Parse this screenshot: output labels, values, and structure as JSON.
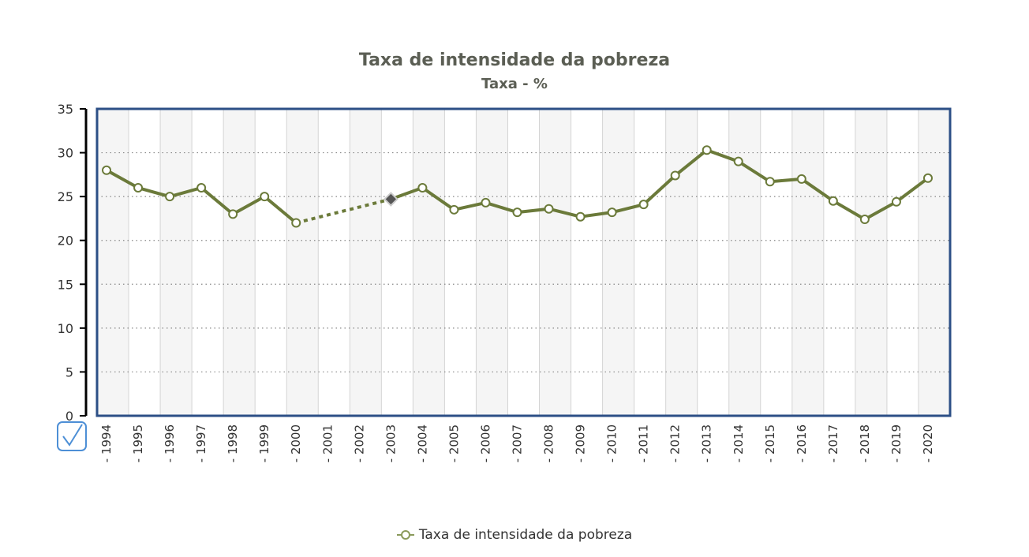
{
  "chart_data": {
    "type": "line",
    "title": "Taxa de intensidade da pobreza",
    "subtitle": "Taxa - %",
    "xlabel": "",
    "ylabel": "",
    "ylim": [
      0,
      35
    ],
    "yticks": [
      0,
      5,
      10,
      15,
      20,
      25,
      30,
      35
    ],
    "x": [
      "1994",
      "1995",
      "1996",
      "1997",
      "1998",
      "1999",
      "2000",
      "2001",
      "2002",
      "2003",
      "2004",
      "2005",
      "2006",
      "2007",
      "2008",
      "2009",
      "2010",
      "2011",
      "2012",
      "2013",
      "2014",
      "2015",
      "2016",
      "2017",
      "2018",
      "2019",
      "2020"
    ],
    "series": [
      {
        "name": "Taxa de intensidade da pobreza",
        "color": "#6b7a3a",
        "values": [
          28.0,
          26.0,
          25.0,
          26.0,
          23.0,
          25.0,
          22.0,
          null,
          null,
          24.7,
          26.0,
          23.5,
          24.3,
          23.2,
          23.6,
          22.7,
          23.2,
          24.1,
          27.4,
          30.3,
          29.0,
          26.7,
          27.0,
          24.5,
          22.4,
          24.4,
          27.1
        ]
      }
    ],
    "grid": true,
    "legend_position": "bottom",
    "frame_color": "#2c4f86",
    "band_color": "#f5f5f5"
  },
  "legend": {
    "label": "Taxa de intensidade da pobreza"
  },
  "check_icon": "check-icon"
}
